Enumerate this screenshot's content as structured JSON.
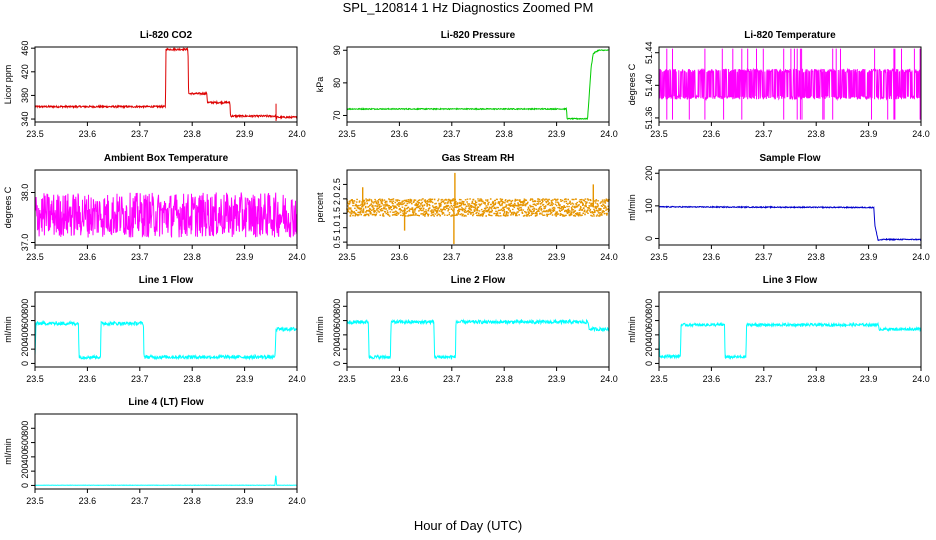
{
  "page": {
    "title": "SPL_120814  1 Hz Diagnostics Zoomed PM",
    "xlabel": "Hour of Day (UTC)"
  },
  "chart_data": [
    {
      "type": "line",
      "title": "Li-820 CO2",
      "ylabel": "Licor ppm",
      "color": "#dd0000",
      "x": [
        23.5,
        23.7,
        23.749,
        23.75,
        23.792,
        23.793,
        23.828,
        23.829,
        23.872,
        23.873,
        23.96,
        23.961,
        24.0
      ],
      "y": [
        361,
        361,
        361,
        458,
        458,
        383,
        383,
        368,
        368,
        345,
        345,
        343,
        343
      ],
      "spikes": [
        {
          "x": 23.96,
          "y": 334
        },
        {
          "x": 23.96,
          "y": 366
        }
      ],
      "noise": 1.5,
      "xlim": [
        23.5,
        24.0
      ],
      "ylim": [
        335,
        462
      ],
      "xticks": [
        23.5,
        23.6,
        23.7,
        23.8,
        23.9,
        24.0
      ],
      "yticks": [
        340,
        380,
        420,
        460
      ]
    },
    {
      "type": "line",
      "title": "Li-820 Pressure",
      "ylabel": "kPa",
      "color": "#00cc00",
      "x": [
        23.5,
        23.919,
        23.92,
        23.959,
        23.96,
        23.966,
        23.97,
        23.98,
        24.0
      ],
      "y": [
        72,
        72,
        69,
        69,
        71,
        85,
        89,
        90,
        90
      ],
      "noise": 0.15,
      "xlim": [
        23.5,
        24.0
      ],
      "ylim": [
        68,
        91
      ],
      "xticks": [
        23.5,
        23.6,
        23.7,
        23.8,
        23.9,
        24.0
      ],
      "yticks": [
        70,
        80,
        90
      ]
    },
    {
      "type": "line",
      "title": "Li-820 Temperature",
      "ylabel": "degrees C",
      "color": "#ff00ff",
      "x": [
        23.5,
        24.0
      ],
      "y": [
        51.394,
        51.394
      ],
      "band": [
        51.383,
        51.42
      ],
      "spikes_high": 51.445,
      "spikes_low": 51.358,
      "noise": 0.018,
      "xlim": [
        23.5,
        24.0
      ],
      "ylim": [
        51.355,
        51.447
      ],
      "xticks": [
        23.5,
        23.6,
        23.7,
        23.8,
        23.9,
        24.0
      ],
      "yticks": [
        51.36,
        51.4,
        51.44
      ],
      "ytick_labels": [
        "51.36",
        "51.40",
        "51.44"
      ]
    },
    {
      "type": "line",
      "title": "Ambient Box Temperature",
      "ylabel": "degrees C",
      "color": "#ff00ff",
      "x": [
        23.5,
        24.0
      ],
      "y": [
        37.55,
        37.55
      ],
      "noise": 0.45,
      "xlim": [
        23.5,
        24.0
      ],
      "ylim": [
        36.95,
        38.45
      ],
      "xticks": [
        23.5,
        23.6,
        23.7,
        23.8,
        23.9,
        24.0
      ],
      "yticks": [
        37.0,
        38.0
      ],
      "ytick_labels": [
        "37.0",
        "38.0"
      ]
    },
    {
      "type": "scatter",
      "title": "Gas Stream RH",
      "ylabel": "percent",
      "color": "#e69500",
      "x": [
        23.5,
        24.0
      ],
      "y": [
        1.7,
        1.7
      ],
      "noise": 0.3,
      "outliers": [
        {
          "x": 23.706,
          "y": 2.9
        },
        {
          "x": 23.704,
          "y": 0.4
        },
        {
          "x": 23.61,
          "y": 0.9
        },
        {
          "x": 23.53,
          "y": 2.4
        },
        {
          "x": 23.97,
          "y": 2.5
        }
      ],
      "xlim": [
        23.5,
        24.0
      ],
      "ylim": [
        0.4,
        3.0
      ],
      "xticks": [
        23.5,
        23.6,
        23.7,
        23.8,
        23.9,
        24.0
      ],
      "yticks": [
        0.5,
        1.0,
        1.5,
        2.0,
        2.5
      ],
      "ytick_labels": [
        "0.5",
        "1.0",
        "1.5",
        "2.0",
        "2.5"
      ]
    },
    {
      "type": "line",
      "title": "Sample Flow",
      "ylabel": "ml/min",
      "color": "#0000cc",
      "x": [
        23.5,
        23.91,
        23.912,
        23.918,
        23.93,
        24.0
      ],
      "y": [
        97,
        95,
        40,
        -5,
        -3,
        -3
      ],
      "noise": 1.5,
      "xlim": [
        23.5,
        24.0
      ],
      "ylim": [
        -20,
        210
      ],
      "xticks": [
        23.5,
        23.6,
        23.7,
        23.8,
        23.9,
        24.0
      ],
      "yticks": [
        0,
        100,
        200
      ]
    },
    {
      "type": "line",
      "title": "Line 1 Flow",
      "ylabel": "ml/min",
      "color": "#00ffff",
      "x": [
        23.5,
        23.502,
        23.583,
        23.584,
        23.625,
        23.626,
        23.707,
        23.708,
        23.958,
        23.96,
        24.0
      ],
      "y": [
        100,
        560,
        560,
        90,
        90,
        560,
        560,
        90,
        90,
        480,
        480
      ],
      "noise": 25,
      "xlim": [
        23.5,
        24.0
      ],
      "ylim": [
        -50,
        1000
      ],
      "xticks": [
        23.5,
        23.6,
        23.7,
        23.8,
        23.9,
        24.0
      ],
      "yticks": [
        0,
        200,
        400,
        600,
        800
      ]
    },
    {
      "type": "line",
      "title": "Line 2 Flow",
      "ylabel": "ml/min",
      "color": "#00ffff",
      "x": [
        23.5,
        23.541,
        23.542,
        23.583,
        23.584,
        23.666,
        23.667,
        23.707,
        23.708,
        23.96,
        23.962,
        24.0
      ],
      "y": [
        580,
        580,
        90,
        90,
        580,
        580,
        90,
        90,
        580,
        580,
        480,
        480
      ],
      "noise": 25,
      "xlim": [
        23.5,
        24.0
      ],
      "ylim": [
        -50,
        1000
      ],
      "xticks": [
        23.5,
        23.6,
        23.7,
        23.8,
        23.9,
        24.0
      ],
      "yticks": [
        0,
        200,
        400,
        600,
        800
      ]
    },
    {
      "type": "line",
      "title": "Line 3 Flow",
      "ylabel": "ml/min",
      "color": "#00ffff",
      "x": [
        23.5,
        23.501,
        23.502,
        23.541,
        23.542,
        23.625,
        23.626,
        23.666,
        23.667,
        23.918,
        23.92,
        24.0
      ],
      "y": [
        560,
        100,
        100,
        100,
        540,
        540,
        90,
        90,
        540,
        540,
        480,
        480
      ],
      "noise": 20,
      "xlim": [
        23.5,
        24.0
      ],
      "ylim": [
        -50,
        1000
      ],
      "xticks": [
        23.5,
        23.6,
        23.7,
        23.8,
        23.9,
        24.0
      ],
      "yticks": [
        0,
        200,
        400,
        600,
        800
      ]
    },
    {
      "type": "line",
      "title": "Line 4 (LT) Flow",
      "ylabel": "ml/min",
      "color": "#00ffff",
      "x": [
        23.5,
        23.958,
        23.959,
        23.96,
        23.961,
        24.0
      ],
      "y": [
        3,
        3,
        130,
        130,
        3,
        3
      ],
      "noise": 2,
      "xlim": [
        23.5,
        24.0
      ],
      "ylim": [
        -50,
        1000
      ],
      "xticks": [
        23.5,
        23.6,
        23.7,
        23.8,
        23.9,
        24.0
      ],
      "yticks": [
        0,
        200,
        400,
        600,
        800
      ]
    }
  ]
}
